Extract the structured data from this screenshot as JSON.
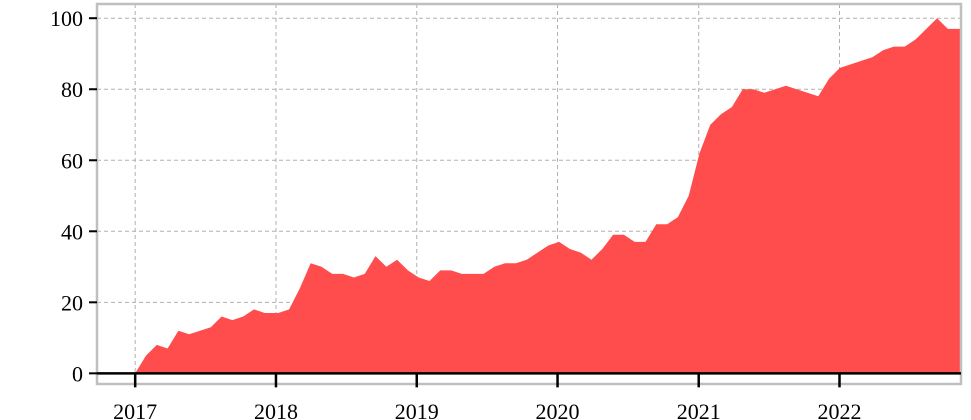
{
  "colors": {
    "area_fill": "#ff4d4d",
    "frame": "#bfbfbf",
    "grid": "#b0b0b0",
    "axis": "#000000",
    "background": "#ffffff"
  },
  "chart_data": {
    "type": "area",
    "title": "",
    "xlabel": "",
    "ylabel": "",
    "grid": true,
    "grid_style": "dashed",
    "legend": "none",
    "xlim": [
      "2016-09-24",
      "2022-11-12"
    ],
    "ylim": [
      -3,
      104
    ],
    "x_ticks": [
      "2017",
      "2018",
      "2019",
      "2020",
      "2021",
      "2022"
    ],
    "y_ticks": [
      "0",
      "20",
      "40",
      "60",
      "80",
      "100"
    ],
    "series": [
      {
        "color": "#ff4d4d",
        "points": [
          [
            "2017-01-01",
            0
          ],
          [
            "2017-01-29",
            5
          ],
          [
            "2017-02-26",
            8
          ],
          [
            "2017-03-26",
            7
          ],
          [
            "2017-04-23",
            12
          ],
          [
            "2017-05-21",
            11
          ],
          [
            "2017-06-18",
            12
          ],
          [
            "2017-07-16",
            13
          ],
          [
            "2017-08-13",
            16
          ],
          [
            "2017-09-10",
            15
          ],
          [
            "2017-10-08",
            16
          ],
          [
            "2017-11-05",
            18
          ],
          [
            "2017-12-03",
            17
          ],
          [
            "2018-01-07",
            17
          ],
          [
            "2018-02-04",
            18
          ],
          [
            "2018-03-04",
            24
          ],
          [
            "2018-04-01",
            31
          ],
          [
            "2018-04-29",
            30
          ],
          [
            "2018-05-27",
            28
          ],
          [
            "2018-06-24",
            28
          ],
          [
            "2018-07-22",
            27
          ],
          [
            "2018-08-19",
            28
          ],
          [
            "2018-09-16",
            33
          ],
          [
            "2018-10-14",
            30
          ],
          [
            "2018-11-11",
            32
          ],
          [
            "2018-12-09",
            29
          ],
          [
            "2019-01-06",
            27
          ],
          [
            "2019-02-03",
            26
          ],
          [
            "2019-03-03",
            29
          ],
          [
            "2019-03-31",
            29
          ],
          [
            "2019-04-28",
            28
          ],
          [
            "2019-05-26",
            28
          ],
          [
            "2019-06-23",
            28
          ],
          [
            "2019-07-21",
            30
          ],
          [
            "2019-08-18",
            31
          ],
          [
            "2019-09-15",
            31
          ],
          [
            "2019-10-13",
            32
          ],
          [
            "2019-11-10",
            34
          ],
          [
            "2019-12-08",
            36
          ],
          [
            "2020-01-05",
            37
          ],
          [
            "2020-02-02",
            35
          ],
          [
            "2020-03-01",
            34
          ],
          [
            "2020-03-29",
            32
          ],
          [
            "2020-04-26",
            35
          ],
          [
            "2020-05-24",
            39
          ],
          [
            "2020-06-21",
            39
          ],
          [
            "2020-07-19",
            37
          ],
          [
            "2020-08-16",
            37
          ],
          [
            "2020-09-13",
            42
          ],
          [
            "2020-10-11",
            42
          ],
          [
            "2020-11-08",
            44
          ],
          [
            "2020-12-06",
            50
          ],
          [
            "2021-01-03",
            62
          ],
          [
            "2021-01-31",
            70
          ],
          [
            "2021-02-28",
            73
          ],
          [
            "2021-03-28",
            75
          ],
          [
            "2021-04-25",
            80
          ],
          [
            "2021-05-23",
            80
          ],
          [
            "2021-06-20",
            79
          ],
          [
            "2021-07-18",
            80
          ],
          [
            "2021-08-15",
            81
          ],
          [
            "2021-09-12",
            80
          ],
          [
            "2021-10-10",
            79
          ],
          [
            "2021-11-07",
            78
          ],
          [
            "2021-12-05",
            83
          ],
          [
            "2022-01-02",
            86
          ],
          [
            "2022-01-30",
            87
          ],
          [
            "2022-02-27",
            88
          ],
          [
            "2022-03-27",
            89
          ],
          [
            "2022-04-24",
            91
          ],
          [
            "2022-05-22",
            92
          ],
          [
            "2022-06-19",
            92
          ],
          [
            "2022-07-17",
            94
          ],
          [
            "2022-08-14",
            97
          ],
          [
            "2022-09-11",
            100
          ],
          [
            "2022-10-09",
            97
          ],
          [
            "2022-11-06",
            97
          ]
        ]
      }
    ]
  }
}
